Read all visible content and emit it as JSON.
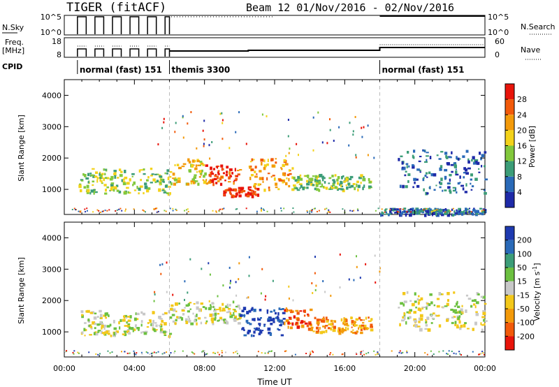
{
  "title_left": "TIGER (fitACF)",
  "title_right": "Beam 12  01/Nov/2016 - 02/Nov/2016",
  "header_panel": {
    "nsky_label": "N.Sky",
    "nsky_ticks": [
      "10^5",
      "10^0"
    ],
    "nsearch_label": "N.Search",
    "nsearch_ticks": [
      "10^5",
      "10^0"
    ],
    "freq_label": "Freq.",
    "freq_unit": "[MHz]",
    "freq_ticks": [
      "18",
      "8"
    ],
    "nave_label": "Nave",
    "nave_ticks": [
      "60",
      "0"
    ],
    "cpid_label": "CPID",
    "cpid_segments": [
      {
        "start_hour": 0.75,
        "end_hour": 6.0,
        "label": "normal (fast) 151"
      },
      {
        "start_hour": 6.0,
        "end_hour": 18.0,
        "label": "themis 3300"
      },
      {
        "start_hour": 18.0,
        "end_hour": 24.0,
        "label": "normal (fast) 151"
      }
    ],
    "sky_pulses_hours": [
      [
        0.75,
        1.25
      ],
      [
        1.75,
        2.25
      ],
      [
        2.75,
        3.25
      ],
      [
        3.75,
        4.25
      ],
      [
        4.75,
        5.25
      ],
      [
        5.75,
        6.0
      ]
    ]
  },
  "chart_data": [
    {
      "type": "heatmap",
      "name": "power",
      "xlabel": "",
      "ylabel": "Slant Range [km]",
      "xlim": [
        0,
        24
      ],
      "ylim": [
        200,
        4500
      ],
      "yticks": [
        1000,
        2000,
        3000,
        4000
      ],
      "colorbar_label": "Power [dB]",
      "colorbar_ticks": [
        "28",
        "24",
        "20",
        "16",
        "12",
        "8",
        "4"
      ],
      "colorbar_colors": [
        "#e8140a",
        "#f25a0a",
        "#f39a0a",
        "#f3d21a",
        "#82c83c",
        "#3c9d78",
        "#2a6ab8",
        "#1e2aa8"
      ],
      "echo_regions": [
        {
          "x0": 0.8,
          "x1": 6.0,
          "y0": 900,
          "y1": 1700,
          "level": 4
        },
        {
          "x0": 6.0,
          "x1": 8.0,
          "y0": 1200,
          "y1": 2000,
          "level": 3
        },
        {
          "x0": 8.0,
          "x1": 10.0,
          "y0": 1200,
          "y1": 1800,
          "level": 1
        },
        {
          "x0": 9.0,
          "x1": 11.0,
          "y0": 800,
          "y1": 1100,
          "level": 0
        },
        {
          "x0": 10.5,
          "x1": 13.0,
          "y0": 1000,
          "y1": 2000,
          "level": 2
        },
        {
          "x0": 13.0,
          "x1": 17.5,
          "y0": 1000,
          "y1": 1500,
          "level": 4
        },
        {
          "x0": 19.0,
          "x1": 24.0,
          "y0": 900,
          "y1": 2300,
          "level": 6
        },
        {
          "x0": 18.0,
          "x1": 24.0,
          "y0": 220,
          "y1": 420,
          "level": 6
        }
      ]
    },
    {
      "type": "heatmap",
      "name": "velocity",
      "xlabel": "Time UT",
      "ylabel": "Slant Range [km]",
      "xlim": [
        0,
        24
      ],
      "ylim": [
        200,
        4500
      ],
      "yticks": [
        1000,
        2000,
        3000,
        4000
      ],
      "xticks": [
        "00:00",
        "04:00",
        "08:00",
        "12:00",
        "16:00",
        "20:00",
        "00:00"
      ],
      "colorbar_label": "Velocity [m s^-1]",
      "colorbar_ticks": [
        "200",
        "100",
        "50",
        "15",
        "-15",
        "-50",
        "-100",
        "-200"
      ],
      "colorbar_colors": [
        "#1e3ab0",
        "#2a6ab8",
        "#3c9d78",
        "#6cc040",
        "#c8c8c8",
        "#f3c81a",
        "#f39a0a",
        "#f25a0a",
        "#e8140a"
      ],
      "echo_regions": [
        {
          "x0": 0.8,
          "x1": 6.0,
          "y0": 900,
          "y1": 1700,
          "level": 4
        },
        {
          "x0": 6.0,
          "x1": 10.0,
          "y0": 1300,
          "y1": 2000,
          "level": 4
        },
        {
          "x0": 10.0,
          "x1": 12.5,
          "y0": 900,
          "y1": 1800,
          "level": 0
        },
        {
          "x0": 12.5,
          "x1": 14.0,
          "y0": 1100,
          "y1": 1800,
          "level": 7
        },
        {
          "x0": 14.0,
          "x1": 17.5,
          "y0": 1000,
          "y1": 1500,
          "level": 6
        },
        {
          "x0": 19.0,
          "x1": 24.0,
          "y0": 1100,
          "y1": 2300,
          "level": 4
        }
      ]
    }
  ]
}
